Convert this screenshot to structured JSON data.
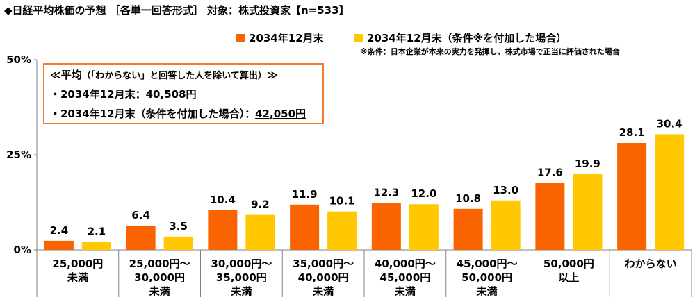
{
  "title": "◆日経平均株価の予想 ［各単一回答形式］ 対象：株式投資家【n=533】",
  "legend": {
    "series1": "2034年12月末",
    "series2": "2034年12月末（条件※を付加した場合）"
  },
  "note": "※条件：日本企業が本来の実力を発揮し、株式市場で正当に評価された場合",
  "colors": {
    "series1": "#fa6400",
    "series2": "#ffc800",
    "box_border": "#ed7d31",
    "axis": "#808080"
  },
  "average_box": {
    "title_open": "≪平均",
    "title_sub": "（「わからない」と回答した人を除いて算出）",
    "title_close": "≫",
    "line1_label": "・2034年12月末：",
    "line1_value": "40,508円",
    "line2_label": "・2034年12月末（条件を付加した場合）：",
    "line2_value": "42,050円"
  },
  "chart_data": {
    "type": "bar",
    "categories": [
      [
        "25,000円",
        "未満"
      ],
      [
        "25,000円～",
        "30,000円",
        "未満"
      ],
      [
        "30,000円～",
        "35,000円",
        "未満"
      ],
      [
        "35,000円～",
        "40,000円",
        "未満"
      ],
      [
        "40,000円～",
        "45,000円",
        "未満"
      ],
      [
        "45,000円～",
        "50,000円",
        "未満"
      ],
      [
        "50,000円",
        "以上"
      ],
      [
        "わからない"
      ]
    ],
    "series": [
      {
        "name": "2034年12月末",
        "values": [
          2.4,
          6.4,
          10.4,
          11.9,
          12.3,
          10.8,
          17.6,
          28.1
        ]
      },
      {
        "name": "2034年12月末（条件※を付加した場合）",
        "values": [
          2.1,
          3.5,
          9.2,
          10.1,
          12.0,
          13.0,
          19.9,
          30.4
        ]
      }
    ],
    "value_labels": [
      [
        "2.4",
        "6.4",
        "10.4",
        "11.9",
        "12.3",
        "10.8",
        "17.6",
        "28.1"
      ],
      [
        "2.1",
        "3.5",
        "9.2",
        "10.1",
        "12.0",
        "13.0",
        "19.9",
        "30.4"
      ]
    ],
    "yticks": [
      "0%",
      "25%",
      "50%"
    ],
    "ylim": [
      0,
      50
    ],
    "grid": false,
    "legend_position": "top"
  }
}
